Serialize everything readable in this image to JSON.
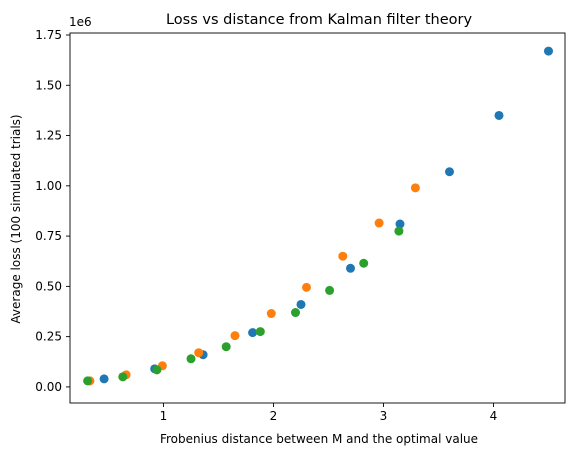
{
  "chart_data": {
    "type": "scatter",
    "title": "Loss vs distance from Kalman filter theory",
    "xlabel": "Frobenius distance between M and the optimal value",
    "ylabel": "Average loss (100 simulated trials)",
    "y_offset_label": "1e6",
    "xlim": [
      0.15,
      4.65
    ],
    "ylim": [
      -0.08,
      1.76
    ],
    "x_ticks": [
      1,
      2,
      3,
      4
    ],
    "x_tick_labels": [
      "1",
      "2",
      "3",
      "4"
    ],
    "y_ticks": [
      0.0,
      0.25,
      0.5,
      0.75,
      1.0,
      1.25,
      1.5,
      1.75
    ],
    "y_tick_labels": [
      "0.00",
      "0.25",
      "0.50",
      "0.75",
      "1.00",
      "1.25",
      "1.50",
      "1.75"
    ],
    "grid": false,
    "legend": false,
    "series": [
      {
        "color": "#1f77b4",
        "x": [
          0.33,
          0.46,
          0.92,
          1.36,
          1.81,
          2.25,
          2.7,
          3.15,
          3.6,
          4.05,
          4.5
        ],
        "y": [
          0.03,
          0.04,
          0.09,
          0.16,
          0.27,
          0.41,
          0.59,
          0.81,
          1.07,
          1.35,
          1.67
        ]
      },
      {
        "color": "#ff7f0e",
        "x": [
          0.33,
          0.66,
          0.99,
          1.32,
          1.65,
          1.98,
          2.3,
          2.63,
          2.96,
          3.29
        ],
        "y": [
          0.03,
          0.06,
          0.105,
          0.17,
          0.255,
          0.365,
          0.495,
          0.65,
          0.815,
          0.99
        ]
      },
      {
        "color": "#2ca02c",
        "x": [
          0.31,
          0.63,
          0.94,
          1.25,
          1.57,
          1.88,
          2.2,
          2.51,
          2.82,
          3.14
        ],
        "y": [
          0.03,
          0.05,
          0.085,
          0.14,
          0.2,
          0.275,
          0.37,
          0.48,
          0.615,
          0.775
        ]
      }
    ]
  }
}
